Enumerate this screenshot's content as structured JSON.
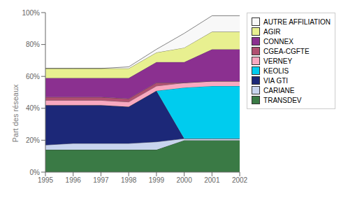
{
  "chart_data": {
    "type": "area",
    "stacked": true,
    "x": [
      1995,
      1996,
      1997,
      1998,
      1999,
      2000,
      2001,
      2002
    ],
    "xlim": [
      1995,
      2002
    ],
    "xticks": [
      1995,
      1996,
      1997,
      1998,
      1999,
      2000,
      2001,
      2002
    ],
    "ylim": [
      0,
      100
    ],
    "yticks": [
      {
        "value": 0,
        "label": "0%"
      },
      {
        "value": 20,
        "label": "20%"
      },
      {
        "value": 40,
        "label": "40%"
      },
      {
        "value": 60,
        "label": "60%"
      },
      {
        "value": 80,
        "label": "80%"
      },
      {
        "value": 100,
        "label": "100%"
      }
    ],
    "y_label": "Part des réseaux",
    "grid": false,
    "legend": "right",
    "series": [
      {
        "name": "TRANSDEV",
        "color": "#3a7a45",
        "values": [
          14,
          14,
          14,
          14,
          14,
          20,
          20,
          20
        ]
      },
      {
        "name": "CARIANE",
        "color": "#c8d4ee",
        "values": [
          3,
          4,
          4,
          4,
          5,
          1,
          1,
          1
        ]
      },
      {
        "name": "VIA GTI",
        "color": "#1c2878",
        "values": [
          25,
          24,
          24,
          23,
          32,
          0,
          0,
          0
        ]
      },
      {
        "name": "KEOLIS",
        "color": "#00ccee",
        "values": [
          0,
          0,
          0,
          0,
          0,
          32,
          33,
          33
        ]
      },
      {
        "name": "VERNEY",
        "color": "#f8a8c0",
        "values": [
          3,
          3,
          3,
          3,
          3,
          3,
          3,
          3
        ]
      },
      {
        "name": "CGEA-CGFTE",
        "color": "#b05070",
        "values": [
          2,
          2,
          2,
          2,
          2,
          0,
          0,
          0
        ]
      },
      {
        "name": "CONNEX",
        "color": "#8b3090",
        "values": [
          12,
          12,
          12,
          13,
          13,
          13,
          20,
          20
        ]
      },
      {
        "name": "AGIR",
        "color": "#e8f090",
        "values": [
          6,
          6,
          6,
          6,
          6,
          9,
          11,
          11
        ]
      },
      {
        "name": "AUTRE AFFILIATION",
        "color": "#f8f8f8",
        "values": [
          0,
          0,
          0,
          1,
          2,
          9,
          10,
          10
        ]
      }
    ]
  }
}
